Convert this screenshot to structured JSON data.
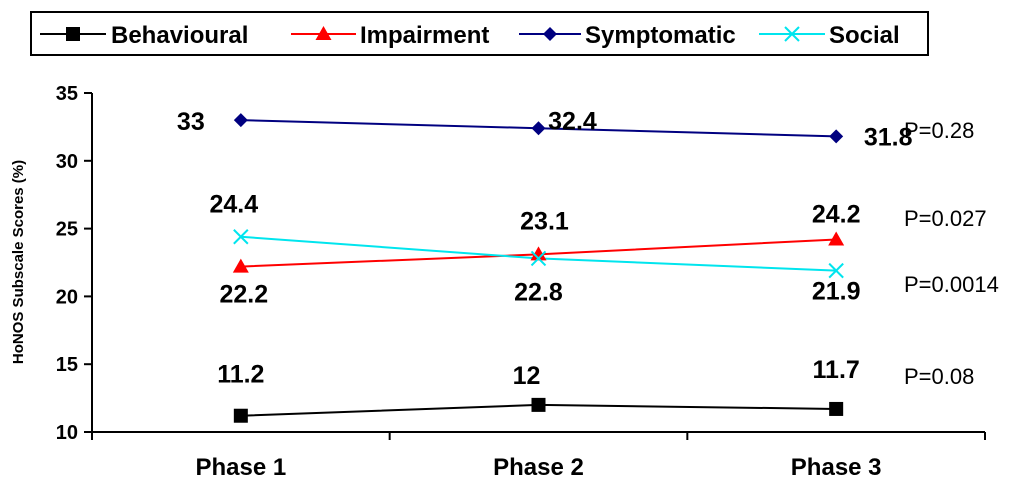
{
  "chart_data": {
    "type": "line",
    "title": "",
    "xlabel": "",
    "ylabel": "HoNOS Subscale Scores (%)",
    "categories": [
      "Phase 1",
      "Phase 2",
      "Phase 3"
    ],
    "ylim": [
      10,
      35
    ],
    "yticks": [
      10,
      15,
      20,
      25,
      30,
      35
    ],
    "grid": false,
    "legend_position": "top",
    "series": [
      {
        "name": "Behavioural",
        "values": [
          11.2,
          12,
          11.7
        ],
        "labels": [
          "11.2",
          "12",
          "11.7"
        ],
        "color": "#000000",
        "marker": "square",
        "p_value": "P=0.08"
      },
      {
        "name": "Impairment",
        "values": [
          22.2,
          23.1,
          24.2
        ],
        "labels": [
          "22.2",
          "23.1",
          "24.2"
        ],
        "color": "#ff0000",
        "marker": "triangle",
        "p_value": "P=0.027"
      },
      {
        "name": "Symptomatic",
        "values": [
          33,
          32.4,
          31.8
        ],
        "labels": [
          "33",
          "32.4",
          "31.8"
        ],
        "color": "#000080",
        "marker": "diamond",
        "p_value": "P=0.28"
      },
      {
        "name": "Social",
        "values": [
          24.4,
          22.8,
          21.9
        ],
        "labels": [
          "24.4",
          "22.8",
          "21.9"
        ],
        "color": "#00e5ee",
        "marker": "x",
        "p_value": "P=0.0014"
      }
    ]
  }
}
